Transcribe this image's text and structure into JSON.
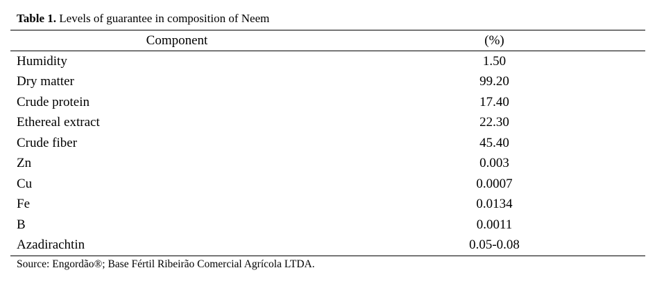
{
  "caption": {
    "label": "Table 1.",
    "text": "Levels of guarantee in composition of Neem"
  },
  "table": {
    "header": [
      "Component",
      "(%)"
    ],
    "rows": [
      [
        "Humidity",
        "1.50"
      ],
      [
        "Dry matter",
        "99.20"
      ],
      [
        "Crude protein",
        "17.40"
      ],
      [
        "Ethereal extract",
        "22.30"
      ],
      [
        "Crude fiber",
        "45.40"
      ],
      [
        "Zn",
        "0.003"
      ],
      [
        "Cu",
        "0.0007"
      ],
      [
        "Fe",
        "0.0134"
      ],
      [
        "B",
        "0.0011"
      ],
      [
        "Azadirachtin",
        "0.05-0.08"
      ]
    ]
  },
  "footnote": "Source: Engordão®; Base Fértil Ribeirão Comercial Agrícola LTDA."
}
